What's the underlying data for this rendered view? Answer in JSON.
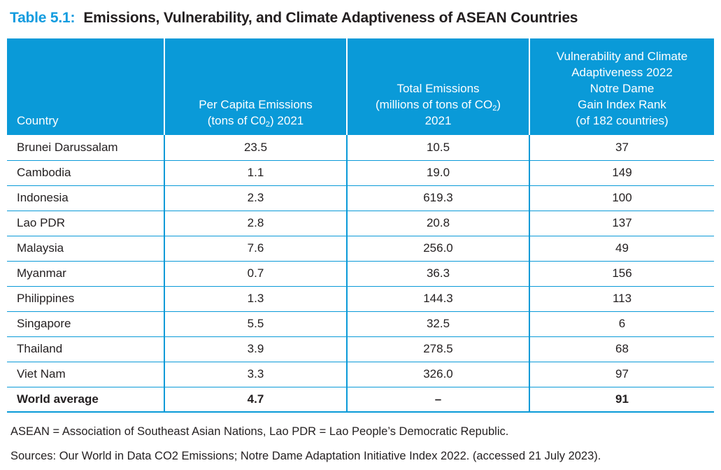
{
  "title": {
    "label": "Table 5.1:",
    "text": "Emissions, Vulnerability, and Climate Adaptiveness of ASEAN Countries"
  },
  "colors": {
    "header_blue": "#0a9ad8",
    "title_blue": "#149cdf",
    "text_dark": "#231f20"
  },
  "table": {
    "header": {
      "country": {
        "label": "Country"
      },
      "per_capita": {
        "line1": "Per Capita Emissions",
        "line2_pre": "(tons of C0",
        "sub": "2",
        "line2_post": ") 2021"
      },
      "total": {
        "line1": "Total Emissions",
        "line2_pre": "(millions of tons of CO",
        "sub": "2",
        "line2_post": ")",
        "line3": "2021"
      },
      "nd_gain": {
        "line1": "Vulnerability and Climate",
        "line2": "Adaptiveness 2022",
        "line3": "Notre Dame",
        "line4": "Gain Index Rank",
        "line5": "(of 182 countries)"
      }
    },
    "rows": [
      {
        "country": "Brunei Darussalam",
        "per_capita": "23.5",
        "total": "10.5",
        "rank": "37"
      },
      {
        "country": "Cambodia",
        "per_capita": "1.1",
        "total": "19.0",
        "rank": "149"
      },
      {
        "country": "Indonesia",
        "per_capita": "2.3",
        "total": "619.3",
        "rank": "100"
      },
      {
        "country": "Lao PDR",
        "per_capita": "2.8",
        "total": "20.8",
        "rank": "137"
      },
      {
        "country": "Malaysia",
        "per_capita": "7.6",
        "total": "256.0",
        "rank": "49"
      },
      {
        "country": "Myanmar",
        "per_capita": "0.7",
        "total": "36.3",
        "rank": "156"
      },
      {
        "country": "Philippines",
        "per_capita": "1.3",
        "total": "144.3",
        "rank": "113"
      },
      {
        "country": "Singapore",
        "per_capita": "5.5",
        "total": "32.5",
        "rank": "6"
      },
      {
        "country": "Thailand",
        "per_capita": "3.9",
        "total": "278.5",
        "rank": "68"
      },
      {
        "country": "Viet Nam",
        "per_capita": "3.3",
        "total": "326.0",
        "rank": "97"
      }
    ],
    "summary_row": {
      "country": "World average",
      "per_capita": "4.7",
      "total": "–",
      "rank": "91"
    }
  },
  "notes": {
    "abbreviations": "ASEAN = Association of Southeast Asian Nations, Lao PDR = Lao People’s Democratic Republic.",
    "sources": "Sources: Our World in Data CO2 Emissions; Notre Dame Adaptation Initiative Index 2022. (accessed 21 July 2023)."
  },
  "chart_data": {
    "type": "table",
    "title": "Emissions, Vulnerability, and Climate Adaptiveness of ASEAN Countries",
    "columns": [
      "Country",
      "Per Capita Emissions (tons of C02) 2021",
      "Total Emissions (millions of tons of CO2) 2021",
      "Vulnerability and Climate Adaptiveness 2022 Notre Dame Gain Index Rank (of 182 countries)"
    ],
    "rows": [
      [
        "Brunei Darussalam",
        23.5,
        10.5,
        37
      ],
      [
        "Cambodia",
        1.1,
        19.0,
        149
      ],
      [
        "Indonesia",
        2.3,
        619.3,
        100
      ],
      [
        "Lao PDR",
        2.8,
        20.8,
        137
      ],
      [
        "Malaysia",
        7.6,
        256.0,
        49
      ],
      [
        "Myanmar",
        0.7,
        36.3,
        156
      ],
      [
        "Philippines",
        1.3,
        144.3,
        113
      ],
      [
        "Singapore",
        5.5,
        32.5,
        6
      ],
      [
        "Thailand",
        3.9,
        278.5,
        68
      ],
      [
        "Viet Nam",
        3.3,
        326.0,
        97
      ],
      [
        "World average",
        4.7,
        null,
        91
      ]
    ]
  }
}
